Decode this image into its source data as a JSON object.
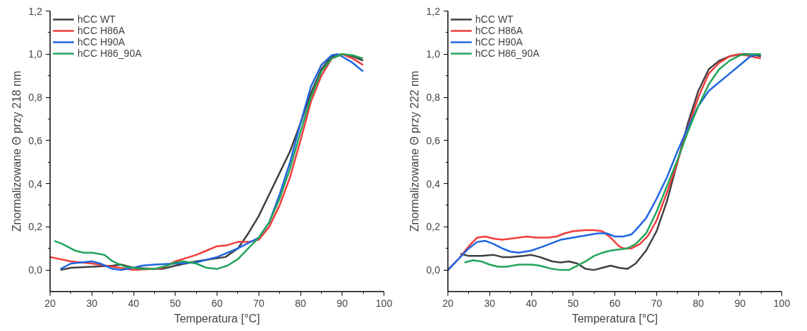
{
  "chart_data": [
    {
      "type": "line",
      "xlabel": "Temperatura [°C]",
      "ylabel": "Znormalizowane Θ przy 218 nm",
      "xlim": [
        20,
        100
      ],
      "ylim": [
        -0.1,
        1.2
      ],
      "xticks": [
        20,
        {
          "value": 25,
          "label": null
        },
        30,
        {
          "value": 35,
          "label": null
        },
        40,
        {
          "value": 45,
          "label": null
        },
        50,
        {
          "value": 55,
          "label": null
        },
        60,
        {
          "value": 65,
          "label": null
        },
        70,
        {
          "value": 75,
          "label": null
        },
        80,
        {
          "value": 85,
          "label": null
        },
        90,
        {
          "value": 95,
          "label": null
        },
        100
      ],
      "yticks": [
        {
          "value": 0,
          "label": "0,0"
        },
        {
          "value": 0.1,
          "label": null
        },
        {
          "value": 0.2,
          "label": "0,2"
        },
        {
          "value": 0.3,
          "label": null
        },
        {
          "value": 0.4,
          "label": "0,4"
        },
        {
          "value": 0.5,
          "label": null
        },
        {
          "value": 0.6,
          "label": "0,6"
        },
        {
          "value": 0.7,
          "label": null
        },
        {
          "value": 0.8,
          "label": "0,8"
        },
        {
          "value": 0.9,
          "label": null
        },
        {
          "value": 1.0,
          "label": "1,0"
        },
        {
          "value": 1.1,
          "label": null
        },
        {
          "value": 1.2,
          "label": "1,2"
        }
      ],
      "grid": false,
      "legend": "top left",
      "line_style": "solid",
      "marker": "none",
      "series": [
        {
          "name": "hCC WT",
          "color": "#404040",
          "x": [
            22.5,
            25,
            30,
            35,
            37,
            40,
            45,
            47,
            50,
            55,
            60,
            62,
            65,
            67.5,
            70,
            72.5,
            75,
            77.5,
            80,
            82.5,
            85,
            87.5,
            90,
            92.5,
            95
          ],
          "values": [
            0.0,
            0.01,
            0.015,
            0.02,
            0.025,
            0.01,
            0.005,
            0.005,
            0.02,
            0.04,
            0.055,
            0.06,
            0.1,
            0.17,
            0.25,
            0.35,
            0.45,
            0.55,
            0.68,
            0.82,
            0.93,
            0.99,
            1.0,
            0.99,
            0.97
          ]
        },
        {
          "name": "hCC H86A",
          "color": "#f23c3c",
          "x": [
            20,
            25,
            30,
            35,
            40,
            45,
            47,
            50,
            55,
            57.5,
            60,
            62.5,
            65,
            67.5,
            70,
            72.5,
            75,
            77.5,
            80,
            82.5,
            85,
            87.5,
            90,
            92.5,
            95
          ],
          "values": [
            0.06,
            0.04,
            0.03,
            0.015,
            0.0,
            0.005,
            0.01,
            0.04,
            0.07,
            0.09,
            0.11,
            0.115,
            0.13,
            0.13,
            0.14,
            0.2,
            0.3,
            0.43,
            0.6,
            0.78,
            0.9,
            0.98,
            1.0,
            0.98,
            0.95
          ]
        },
        {
          "name": "hCC H90A",
          "color": "#1f66e0",
          "x": [
            22.5,
            25,
            30,
            32,
            35,
            37,
            40,
            42,
            45,
            50,
            55,
            60,
            65,
            70,
            72.5,
            75,
            77.5,
            80,
            82.5,
            85,
            87.5,
            89,
            92.5,
            95
          ],
          "values": [
            0.005,
            0.03,
            0.04,
            0.03,
            0.005,
            0.0,
            0.01,
            0.02,
            0.025,
            0.03,
            0.035,
            0.06,
            0.1,
            0.15,
            0.22,
            0.35,
            0.5,
            0.68,
            0.85,
            0.95,
            0.995,
            1.0,
            0.96,
            0.92
          ]
        },
        {
          "name": "hCC H86_90A",
          "color": "#23a45a",
          "x": [
            21,
            23,
            26,
            28,
            30,
            33,
            35,
            38,
            42,
            45,
            48,
            50,
            52,
            55,
            57.5,
            60,
            62.5,
            65,
            67.5,
            70,
            72.5,
            75,
            77.5,
            80,
            82.5,
            85,
            87.5,
            90,
            92.5,
            95
          ],
          "values": [
            0.135,
            0.12,
            0.09,
            0.08,
            0.08,
            0.07,
            0.04,
            0.015,
            0.005,
            0.005,
            0.02,
            0.035,
            0.04,
            0.03,
            0.01,
            0.005,
            0.02,
            0.05,
            0.1,
            0.15,
            0.22,
            0.33,
            0.47,
            0.64,
            0.8,
            0.92,
            0.98,
            1.0,
            0.995,
            0.98
          ]
        }
      ]
    },
    {
      "type": "line",
      "xlabel": "Temperatura [°C]",
      "ylabel": "Znormalizowane Θ przy 222 nm",
      "xlim": [
        20,
        100
      ],
      "ylim": [
        -0.1,
        1.2
      ],
      "xticks": [
        20,
        {
          "value": 25,
          "label": null
        },
        30,
        {
          "value": 35,
          "label": null
        },
        40,
        {
          "value": 45,
          "label": null
        },
        50,
        {
          "value": 55,
          "label": null
        },
        60,
        {
          "value": 65,
          "label": null
        },
        70,
        {
          "value": 75,
          "label": null
        },
        80,
        {
          "value": 85,
          "label": null
        },
        90,
        {
          "value": 95,
          "label": null
        },
        100
      ],
      "yticks": [
        {
          "value": 0,
          "label": "0,0"
        },
        {
          "value": 0.1,
          "label": null
        },
        {
          "value": 0.2,
          "label": "0,2"
        },
        {
          "value": 0.3,
          "label": null
        },
        {
          "value": 0.4,
          "label": "0,4"
        },
        {
          "value": 0.5,
          "label": null
        },
        {
          "value": 0.6,
          "label": "0,6"
        },
        {
          "value": 0.7,
          "label": null
        },
        {
          "value": 0.8,
          "label": "0,8"
        },
        {
          "value": 0.9,
          "label": null
        },
        {
          "value": 1.0,
          "label": "1,0"
        },
        {
          "value": 1.1,
          "label": null
        },
        {
          "value": 1.2,
          "label": "1,2"
        }
      ],
      "grid": false,
      "legend": "top left",
      "line_style": "solid",
      "marker": "none",
      "series": [
        {
          "name": "hCC WT",
          "color": "#404040",
          "x": [
            23,
            25,
            28,
            31,
            33,
            35,
            38,
            40,
            42,
            45,
            47,
            49,
            51,
            53,
            55,
            57,
            59,
            61,
            63,
            65,
            67.5,
            70,
            72.5,
            75,
            77.5,
            80,
            82.5,
            85,
            87.5,
            90,
            92.5,
            95
          ],
          "values": [
            0.075,
            0.065,
            0.065,
            0.07,
            0.06,
            0.06,
            0.065,
            0.07,
            0.06,
            0.04,
            0.035,
            0.04,
            0.03,
            0.005,
            0.0,
            0.01,
            0.02,
            0.01,
            0.005,
            0.03,
            0.09,
            0.18,
            0.32,
            0.5,
            0.68,
            0.83,
            0.93,
            0.97,
            0.99,
            1.0,
            1.0,
            0.99
          ]
        },
        {
          "name": "hCC H86A",
          "color": "#f23c3c",
          "x": [
            20,
            22.5,
            25,
            27,
            29,
            31,
            33,
            35,
            37,
            39,
            41,
            44,
            46,
            48,
            50,
            53,
            55,
            57,
            59,
            61,
            62,
            64,
            66,
            68,
            70,
            72.5,
            75,
            77.5,
            80,
            82.5,
            85,
            87.5,
            90,
            92.5,
            95
          ],
          "values": [
            0.0,
            0.05,
            0.11,
            0.15,
            0.155,
            0.145,
            0.14,
            0.145,
            0.15,
            0.155,
            0.15,
            0.15,
            0.155,
            0.17,
            0.18,
            0.185,
            0.185,
            0.18,
            0.15,
            0.11,
            0.1,
            0.1,
            0.12,
            0.16,
            0.23,
            0.36,
            0.5,
            0.66,
            0.8,
            0.91,
            0.96,
            0.99,
            1.0,
            0.99,
            0.98
          ]
        },
        {
          "name": "hCC H90A",
          "color": "#1f66e0",
          "x": [
            20,
            22.5,
            25,
            27,
            29,
            31,
            33,
            35,
            37,
            40,
            43,
            45,
            47,
            50,
            53,
            56,
            58,
            60,
            62,
            64,
            65,
            67.5,
            70,
            72.5,
            75,
            77.5,
            80,
            82.5,
            85,
            87.5,
            90,
            92.5,
            95
          ],
          "values": [
            0.0,
            0.05,
            0.1,
            0.13,
            0.135,
            0.12,
            0.1,
            0.085,
            0.08,
            0.09,
            0.11,
            0.125,
            0.14,
            0.15,
            0.16,
            0.17,
            0.17,
            0.155,
            0.155,
            0.165,
            0.185,
            0.24,
            0.33,
            0.43,
            0.55,
            0.66,
            0.76,
            0.83,
            0.87,
            0.91,
            0.95,
            0.99,
            1.0
          ]
        },
        {
          "name": "hCC H86_90A",
          "color": "#23a45a",
          "x": [
            24,
            26,
            28,
            30,
            32,
            34,
            37,
            40,
            42,
            45,
            47,
            49,
            51,
            53,
            55,
            57,
            59,
            61,
            63,
            65,
            67.5,
            70,
            72.5,
            75,
            77.5,
            80,
            82.5,
            85,
            87.5,
            90,
            92.5,
            95
          ],
          "values": [
            0.035,
            0.045,
            0.04,
            0.025,
            0.015,
            0.015,
            0.025,
            0.025,
            0.02,
            0.005,
            0.0,
            0.0,
            0.02,
            0.04,
            0.065,
            0.08,
            0.09,
            0.095,
            0.1,
            0.12,
            0.17,
            0.27,
            0.39,
            0.51,
            0.64,
            0.76,
            0.86,
            0.93,
            0.97,
            0.995,
            1.0,
            1.0
          ]
        }
      ]
    }
  ]
}
